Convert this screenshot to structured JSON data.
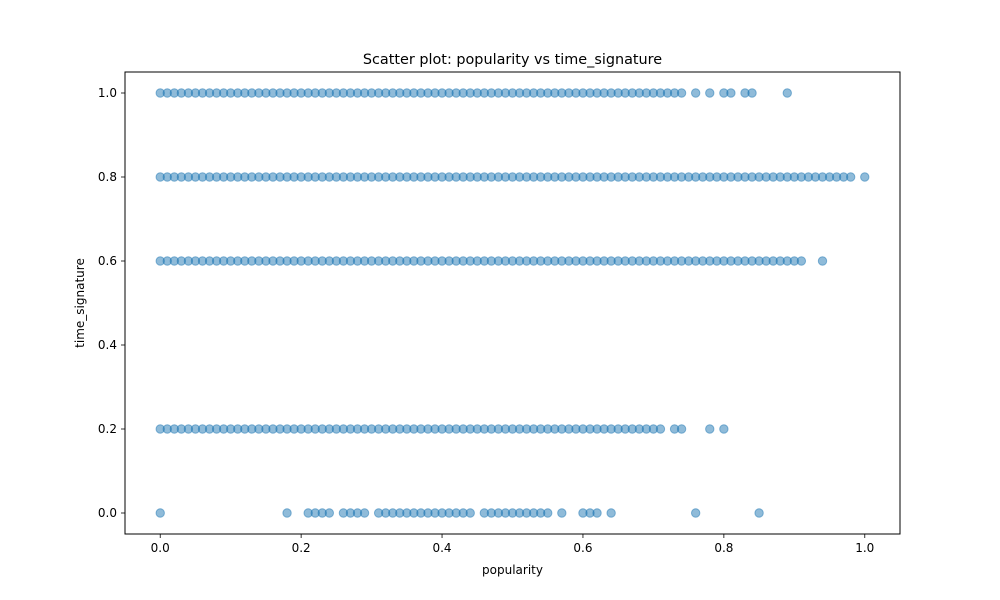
{
  "chart_data": {
    "type": "scatter",
    "title": "Scatter plot: popularity vs time_signature",
    "xlabel": "popularity",
    "ylabel": "time_signature",
    "xlim": [
      -0.05,
      1.05
    ],
    "ylim": [
      -0.05,
      1.05
    ],
    "xticks": [
      0.0,
      0.2,
      0.4,
      0.6,
      0.8,
      1.0
    ],
    "xtick_labels": [
      "0.0",
      "0.2",
      "0.4",
      "0.6",
      "0.8",
      "1.0"
    ],
    "yticks": [
      0.0,
      0.2,
      0.4,
      0.6,
      0.8,
      1.0
    ],
    "ytick_labels": [
      "0.0",
      "0.2",
      "0.4",
      "0.6",
      "0.8",
      "1.0"
    ],
    "grid": false,
    "marker_color": "#1f77b4",
    "marker_alpha": 0.5,
    "series": [
      {
        "y": 1.0,
        "x": [
          0.0,
          0.01,
          0.02,
          0.03,
          0.04,
          0.05,
          0.06,
          0.07,
          0.08,
          0.09,
          0.1,
          0.11,
          0.12,
          0.13,
          0.14,
          0.15,
          0.16,
          0.17,
          0.18,
          0.19,
          0.2,
          0.21,
          0.22,
          0.23,
          0.24,
          0.25,
          0.26,
          0.27,
          0.28,
          0.29,
          0.3,
          0.31,
          0.32,
          0.33,
          0.34,
          0.35,
          0.36,
          0.37,
          0.38,
          0.39,
          0.4,
          0.41,
          0.42,
          0.43,
          0.44,
          0.45,
          0.46,
          0.47,
          0.48,
          0.49,
          0.5,
          0.51,
          0.52,
          0.53,
          0.54,
          0.55,
          0.56,
          0.57,
          0.58,
          0.59,
          0.6,
          0.61,
          0.62,
          0.63,
          0.64,
          0.65,
          0.66,
          0.67,
          0.68,
          0.69,
          0.7,
          0.71,
          0.72,
          0.73,
          0.74,
          0.76,
          0.78,
          0.8,
          0.81,
          0.83,
          0.84,
          0.89
        ]
      },
      {
        "y": 0.8,
        "x": [
          0.0,
          0.01,
          0.02,
          0.03,
          0.04,
          0.05,
          0.06,
          0.07,
          0.08,
          0.09,
          0.1,
          0.11,
          0.12,
          0.13,
          0.14,
          0.15,
          0.16,
          0.17,
          0.18,
          0.19,
          0.2,
          0.21,
          0.22,
          0.23,
          0.24,
          0.25,
          0.26,
          0.27,
          0.28,
          0.29,
          0.3,
          0.31,
          0.32,
          0.33,
          0.34,
          0.35,
          0.36,
          0.37,
          0.38,
          0.39,
          0.4,
          0.41,
          0.42,
          0.43,
          0.44,
          0.45,
          0.46,
          0.47,
          0.48,
          0.49,
          0.5,
          0.51,
          0.52,
          0.53,
          0.54,
          0.55,
          0.56,
          0.57,
          0.58,
          0.59,
          0.6,
          0.61,
          0.62,
          0.63,
          0.64,
          0.65,
          0.66,
          0.67,
          0.68,
          0.69,
          0.7,
          0.71,
          0.72,
          0.73,
          0.74,
          0.75,
          0.76,
          0.77,
          0.78,
          0.79,
          0.8,
          0.81,
          0.82,
          0.83,
          0.84,
          0.85,
          0.86,
          0.87,
          0.88,
          0.89,
          0.9,
          0.91,
          0.92,
          0.93,
          0.94,
          0.95,
          0.96,
          0.97,
          0.98,
          1.0
        ]
      },
      {
        "y": 0.6,
        "x": [
          0.0,
          0.01,
          0.02,
          0.03,
          0.04,
          0.05,
          0.06,
          0.07,
          0.08,
          0.09,
          0.1,
          0.11,
          0.12,
          0.13,
          0.14,
          0.15,
          0.16,
          0.17,
          0.18,
          0.19,
          0.2,
          0.21,
          0.22,
          0.23,
          0.24,
          0.25,
          0.26,
          0.27,
          0.28,
          0.29,
          0.3,
          0.31,
          0.32,
          0.33,
          0.34,
          0.35,
          0.36,
          0.37,
          0.38,
          0.39,
          0.4,
          0.41,
          0.42,
          0.43,
          0.44,
          0.45,
          0.46,
          0.47,
          0.48,
          0.49,
          0.5,
          0.51,
          0.52,
          0.53,
          0.54,
          0.55,
          0.56,
          0.57,
          0.58,
          0.59,
          0.6,
          0.61,
          0.62,
          0.63,
          0.64,
          0.65,
          0.66,
          0.67,
          0.68,
          0.69,
          0.7,
          0.71,
          0.72,
          0.73,
          0.74,
          0.75,
          0.76,
          0.77,
          0.78,
          0.79,
          0.8,
          0.81,
          0.82,
          0.83,
          0.84,
          0.85,
          0.86,
          0.87,
          0.88,
          0.89,
          0.9,
          0.91,
          0.94
        ]
      },
      {
        "y": 0.2,
        "x": [
          0.0,
          0.01,
          0.02,
          0.03,
          0.04,
          0.05,
          0.06,
          0.07,
          0.08,
          0.09,
          0.1,
          0.11,
          0.12,
          0.13,
          0.14,
          0.15,
          0.16,
          0.17,
          0.18,
          0.19,
          0.2,
          0.21,
          0.22,
          0.23,
          0.24,
          0.25,
          0.26,
          0.27,
          0.28,
          0.29,
          0.3,
          0.31,
          0.32,
          0.33,
          0.34,
          0.35,
          0.36,
          0.37,
          0.38,
          0.39,
          0.4,
          0.41,
          0.42,
          0.43,
          0.44,
          0.45,
          0.46,
          0.47,
          0.48,
          0.49,
          0.5,
          0.51,
          0.52,
          0.53,
          0.54,
          0.55,
          0.56,
          0.57,
          0.58,
          0.59,
          0.6,
          0.61,
          0.62,
          0.63,
          0.64,
          0.65,
          0.66,
          0.67,
          0.68,
          0.69,
          0.7,
          0.71,
          0.73,
          0.74,
          0.78,
          0.8
        ]
      },
      {
        "y": 0.0,
        "x": [
          0.0,
          0.18,
          0.21,
          0.22,
          0.23,
          0.24,
          0.26,
          0.27,
          0.28,
          0.29,
          0.31,
          0.32,
          0.33,
          0.34,
          0.35,
          0.36,
          0.37,
          0.38,
          0.39,
          0.4,
          0.41,
          0.42,
          0.43,
          0.44,
          0.46,
          0.47,
          0.48,
          0.49,
          0.5,
          0.51,
          0.52,
          0.53,
          0.54,
          0.55,
          0.57,
          0.6,
          0.61,
          0.62,
          0.64,
          0.76,
          0.85
        ]
      }
    ]
  }
}
